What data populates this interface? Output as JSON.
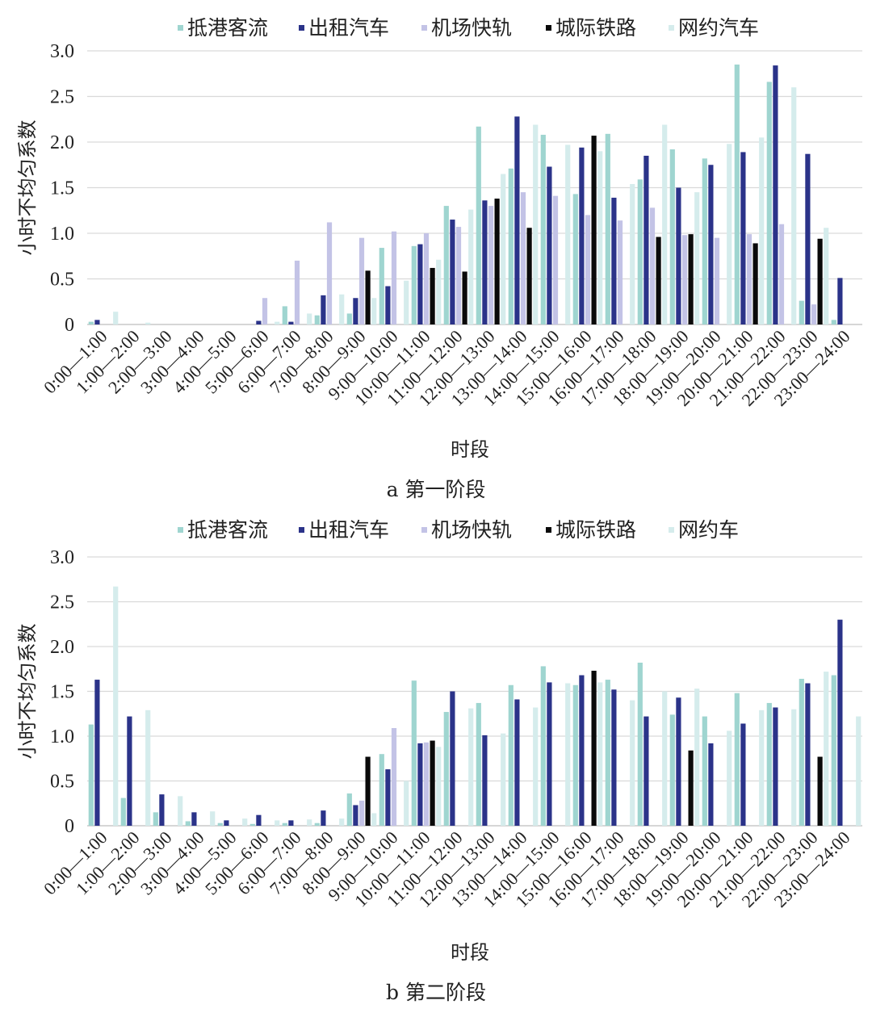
{
  "chart_data": [
    {
      "type": "bar",
      "caption": "a 第一阶段",
      "xlabel": "时段",
      "ylabel": "小时不均匀系数",
      "ylim": [
        0,
        3.0
      ],
      "yticks": [
        "0",
        "0.5",
        "1.0",
        "1.5",
        "2.0",
        "2.5",
        "3.0"
      ],
      "grid": true,
      "legend": "top",
      "categories": [
        "0:00—1:00",
        "1:00—2:00",
        "2:00—3:00",
        "3:00—4:00",
        "4:00—5:00",
        "5:00—6:00",
        "6:00—7:00",
        "7:00—8:00",
        "8:00—9:00",
        "9:00—10:00",
        "10:00—11:00",
        "11:00—12:00",
        "12:00—13:00",
        "13:00—14:00",
        "14:00—15:00",
        "15:00—16:00",
        "16:00—17:00",
        "17:00—18:00",
        "18:00—19:00",
        "19:00—20:00",
        "20:00—21:00",
        "21:00—22:00",
        "22:00—23:00",
        "23:00—24:00"
      ],
      "series": [
        {
          "name": "抵港客流",
          "color": "#9fd5d0",
          "values": [
            0.03,
            0,
            0,
            0,
            0,
            0,
            0.2,
            0.1,
            0.12,
            0.84,
            0.86,
            1.3,
            2.17,
            1.71,
            2.08,
            1.43,
            2.09,
            1.59,
            1.92,
            1.82,
            2.85,
            2.66,
            0.26,
            0.05
          ]
        },
        {
          "name": "出租汽车",
          "color": "#2b3389",
          "values": [
            0.05,
            0,
            0,
            0,
            0,
            0.04,
            0.03,
            0.32,
            0.29,
            0.42,
            0.88,
            1.15,
            1.36,
            2.28,
            1.73,
            1.94,
            1.39,
            1.85,
            1.5,
            1.75,
            1.89,
            2.84,
            1.87,
            0.51
          ]
        },
        {
          "name": "机场快轨",
          "color": "#c3c3e6",
          "values": [
            0,
            0,
            0,
            0,
            0,
            0.29,
            0.7,
            1.12,
            0.95,
            1.02,
            1.0,
            1.07,
            1.3,
            1.45,
            1.41,
            1.2,
            1.14,
            1.28,
            0.98,
            0.95,
            0.99,
            1.1,
            0.22,
            0
          ]
        },
        {
          "name": "城际铁路",
          "color": "#0a0a0a",
          "values": [
            0,
            0,
            0,
            0,
            0,
            0,
            0,
            0,
            0.59,
            0,
            0.62,
            0.58,
            1.38,
            1.06,
            0,
            2.07,
            0,
            0.96,
            0.99,
            0,
            0.89,
            0,
            0.94,
            0
          ]
        },
        {
          "name": "网约汽车",
          "color": "#d5ecec",
          "values": [
            0.14,
            0.02,
            0,
            0,
            0,
            0.03,
            0.12,
            0.33,
            0.29,
            0.48,
            0.71,
            1.26,
            1.65,
            2.19,
            1.97,
            1.9,
            1.54,
            2.19,
            1.45,
            1.98,
            2.05,
            2.6,
            1.06,
            0
          ]
        }
      ]
    },
    {
      "type": "bar",
      "caption": "b 第二阶段",
      "xlabel": "时段",
      "ylabel": "小时不均匀系数",
      "ylim": [
        0,
        3.0
      ],
      "yticks": [
        "0",
        "0.5",
        "1.0",
        "1.5",
        "2.0",
        "2.5",
        "3.0"
      ],
      "grid": true,
      "legend": "top",
      "categories": [
        "0:00—1:00",
        "1:00—2:00",
        "2:00—3:00",
        "3:00—4:00",
        "4:00—5:00",
        "5:00—6:00",
        "6:00—7:00",
        "7:00—8:00",
        "8:00—9:00",
        "9:00—10:00",
        "10:00—11:00",
        "11:00—12:00",
        "12:00—13:00",
        "13:00—14:00",
        "14:00—15:00",
        "15:00—16:00",
        "16:00—17:00",
        "17:00—18:00",
        "18:00—19:00",
        "19:00—20:00",
        "20:00—21:00",
        "21:00—22:00",
        "22:00—23:00",
        "23:00—24:00"
      ],
      "series": [
        {
          "name": "抵港客流",
          "color": "#9fd5d0",
          "values": [
            1.13,
            0.31,
            0.15,
            0.05,
            0.03,
            0.02,
            0.03,
            0.03,
            0.36,
            0.8,
            1.62,
            1.27,
            1.37,
            1.57,
            1.78,
            1.57,
            1.63,
            1.82,
            1.24,
            1.22,
            1.48,
            1.37,
            1.64,
            1.68
          ]
        },
        {
          "name": "出租汽车",
          "color": "#2b3389",
          "values": [
            1.63,
            1.22,
            0.35,
            0.15,
            0.06,
            0.12,
            0.06,
            0.17,
            0.23,
            0.63,
            0.92,
            1.5,
            1.01,
            1.41,
            1.6,
            1.68,
            1.52,
            1.22,
            1.43,
            0.92,
            1.14,
            1.32,
            1.59,
            2.3
          ]
        },
        {
          "name": "机场快轨",
          "color": "#c3c3e6",
          "values": [
            0,
            0,
            0,
            0,
            0,
            0,
            0,
            0,
            0.28,
            1.09,
            0.93,
            0,
            0,
            0,
            0,
            0,
            0,
            0,
            0,
            0,
            0,
            0,
            0,
            0
          ]
        },
        {
          "name": "城际铁路",
          "color": "#0a0a0a",
          "values": [
            0,
            0,
            0,
            0,
            0,
            0,
            0,
            0,
            0.77,
            0,
            0.95,
            0,
            0,
            0,
            0,
            1.73,
            0,
            0,
            0.84,
            0,
            0,
            0,
            0.77,
            0
          ]
        },
        {
          "name": "网约车",
          "color": "#d5ecec",
          "values": [
            2.67,
            1.29,
            0.33,
            0.16,
            0.08,
            0.06,
            0.07,
            0.08,
            0.14,
            0.5,
            0.88,
            1.31,
            1.03,
            1.32,
            1.59,
            1.6,
            1.4,
            1.5,
            1.53,
            1.06,
            1.29,
            1.3,
            1.72,
            1.22
          ]
        }
      ]
    }
  ]
}
